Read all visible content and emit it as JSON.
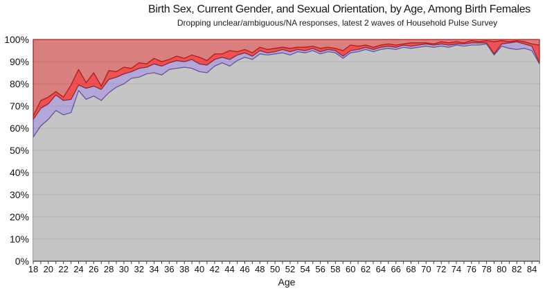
{
  "chart_data": {
    "type": "area",
    "stacked": true,
    "title": "Birth Sex, Current Gender, and Sexual Orientation, by Age, Among Birth Females",
    "subtitle": "Dropping unclear/ambiguous/NA responses, latest 2 waves of Household Pulse Survey",
    "xlabel": "Age",
    "ylim": [
      0,
      100
    ],
    "grid": "horizontal gridlines every 10%, shown over area fills",
    "legend": "none shown",
    "x_note": "one data point per year of age; final point is the 84+ edge of the axis",
    "x": [
      18,
      19,
      20,
      21,
      22,
      23,
      24,
      25,
      26,
      27,
      28,
      29,
      30,
      31,
      32,
      33,
      34,
      35,
      36,
      37,
      38,
      39,
      40,
      41,
      42,
      43,
      44,
      45,
      46,
      47,
      48,
      49,
      50,
      51,
      52,
      53,
      54,
      55,
      56,
      57,
      58,
      59,
      60,
      61,
      62,
      63,
      64,
      65,
      66,
      67,
      68,
      69,
      70,
      71,
      72,
      73,
      74,
      75,
      76,
      77,
      78,
      79,
      80,
      81,
      82,
      83,
      84,
      85
    ],
    "x_tick_labels": [
      "18",
      "20",
      "22",
      "24",
      "26",
      "28",
      "30",
      "32",
      "34",
      "36",
      "38",
      "40",
      "42",
      "44",
      "46",
      "48",
      "50",
      "52",
      "54",
      "56",
      "58",
      "60",
      "62",
      "64",
      "66",
      "68",
      "70",
      "72",
      "74",
      "76",
      "78",
      "80",
      "82",
      "84"
    ],
    "y_tick_labels": [
      "0%",
      "10%",
      "20%",
      "30%",
      "40%",
      "50%",
      "60%",
      "70%",
      "80%",
      "90%",
      "100%"
    ],
    "series": [
      {
        "name": "bottom-gray-area",
        "boundary": "upper boundary (%), fills down to 0%",
        "fill": "#c5c5c5",
        "border": "none",
        "values": [
          56,
          61,
          64,
          68,
          66,
          67,
          77,
          73,
          74.5,
          72.5,
          76,
          78.5,
          80,
          82.5,
          83,
          84.5,
          85,
          84,
          86.5,
          87,
          87.5,
          87,
          85.5,
          85,
          88,
          89.5,
          88,
          90.5,
          92,
          91,
          93.5,
          93,
          93.5,
          94,
          93,
          94.5,
          94,
          95,
          93.5,
          94.5,
          94,
          91.5,
          94,
          94.5,
          95.5,
          94.5,
          95.5,
          96,
          95.5,
          96.5,
          96,
          96.5,
          97,
          96.5,
          97,
          96.5,
          97.5,
          97,
          97.5,
          97.5,
          98,
          93,
          97,
          96,
          95.5,
          96,
          95,
          89
        ]
      },
      {
        "name": "purple-band",
        "boundary": "upper boundary (%), fills down to bottom-gray-area",
        "fill": "#b5a6d8",
        "border": "#6a51a3",
        "values": [
          64,
          69,
          71,
          75,
          72.5,
          73,
          79.5,
          78,
          79,
          77.5,
          82,
          83,
          84.5,
          85.5,
          87,
          87.5,
          89,
          88,
          89.5,
          90.5,
          90,
          91,
          89,
          88.5,
          91,
          92,
          91,
          93,
          94,
          92.5,
          95,
          94,
          94.5,
          95.5,
          94.5,
          95.5,
          95,
          96,
          94.5,
          95.5,
          95,
          92.5,
          95,
          95.5,
          96.5,
          95.5,
          96.5,
          97,
          96.5,
          97.5,
          97,
          97.5,
          98,
          97.5,
          98,
          97.5,
          98,
          98,
          98.5,
          98.5,
          98.5,
          93.5,
          98,
          98.5,
          99,
          98,
          97,
          89.5
        ]
      },
      {
        "name": "bright-red-band",
        "boundary": "upper boundary (%), fills down to purple-band",
        "fill": "#ee5154",
        "border": "#a82420",
        "values": [
          65.5,
          72.5,
          74,
          76.5,
          74,
          79.5,
          86.5,
          80.5,
          85,
          79,
          86,
          85.5,
          87.5,
          87,
          89.5,
          89,
          91.5,
          90,
          91,
          92.5,
          91.5,
          93,
          92,
          90.5,
          93.5,
          93.5,
          95,
          94.5,
          95.5,
          94,
          96.5,
          95.5,
          96,
          96.5,
          96,
          96.5,
          96.5,
          97,
          96,
          96.5,
          96,
          95,
          97.5,
          97,
          97.5,
          96.5,
          97.5,
          98,
          97.5,
          98,
          98.5,
          98.5,
          98.5,
          98,
          99,
          98.5,
          99,
          98.5,
          99.5,
          99,
          99.5,
          99,
          99.5,
          99,
          99.5,
          99,
          98,
          97.5
        ],
        "note": "thin band between the purple band and the top salmon area"
      },
      {
        "name": "top-salmon-area",
        "boundary": "fills from bright-red-band boundary up to 100%",
        "fill": "#da7f7f",
        "border": "#a82420"
      }
    ],
    "colors": {
      "axis_line": "#3a3a3a",
      "gridline": "rgba(0,0,0,0.10)",
      "tick_mark": "#3a3a3a",
      "background": "#ffffff"
    }
  }
}
